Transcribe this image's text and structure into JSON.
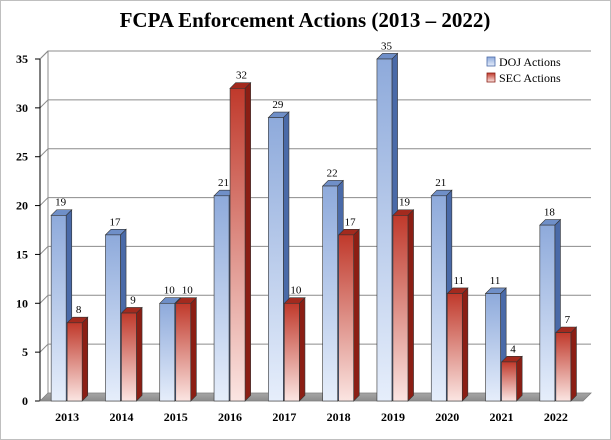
{
  "chart_data": {
    "type": "bar",
    "title": "FCPA Enforcement Actions (2013 – 2022)",
    "categories": [
      "2013",
      "2014",
      "2015",
      "2016",
      "2017",
      "2018",
      "2019",
      "2020",
      "2021",
      "2022"
    ],
    "series": [
      {
        "name": "DOJ Actions",
        "values": [
          19,
          17,
          10,
          21,
          29,
          22,
          35,
          21,
          11,
          18
        ],
        "color_top": "#8eaadb",
        "color_bottom": "#e6eefb",
        "color_dark": "#4a6aa8"
      },
      {
        "name": "SEC Actions",
        "values": [
          8,
          9,
          10,
          32,
          10,
          17,
          19,
          11,
          4,
          7
        ],
        "color_top": "#c0392b",
        "color_bottom": "#fbe5e2",
        "color_dark": "#8b1e14"
      }
    ],
    "yticks": [
      0,
      5,
      10,
      15,
      20,
      25,
      30,
      35
    ],
    "ylim": [
      0,
      35
    ],
    "grid": true,
    "legend_position": "top-right",
    "data_labels": true,
    "style": "3d-column"
  }
}
